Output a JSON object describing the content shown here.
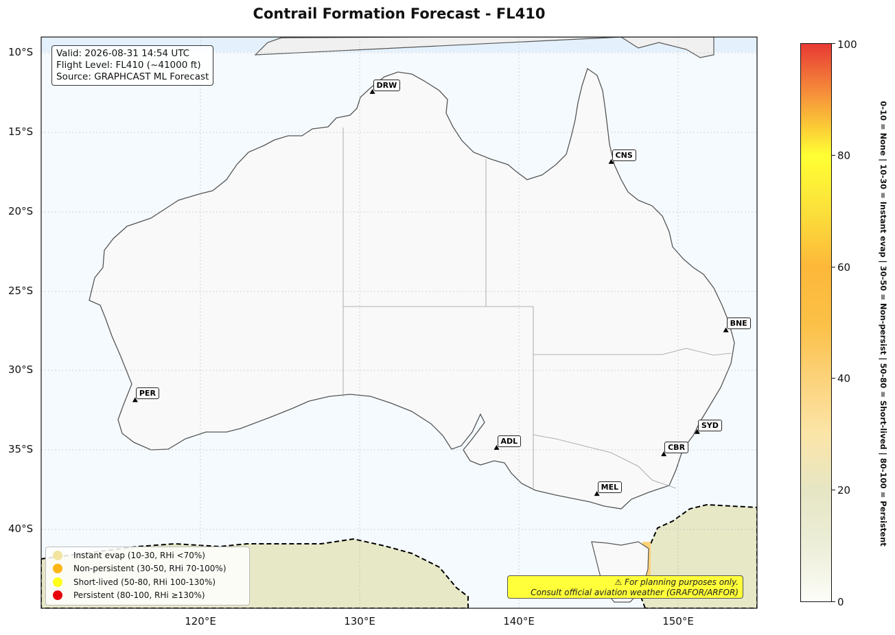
{
  "title": "Contrail Formation Forecast - FL410",
  "info": {
    "valid": "Valid: 2026-08-31 14:54 UTC",
    "flight_level": "Flight Level: FL410 (~41000 ft)",
    "source": "Source: GRAPHCAST ML Forecast"
  },
  "axes": {
    "lat_ticks": [
      "10°S",
      "15°S",
      "20°S",
      "25°S",
      "30°S",
      "35°S",
      "40°S"
    ],
    "lon_ticks": [
      "120°E",
      "130°E",
      "140°E",
      "150°E"
    ]
  },
  "cities": [
    {
      "code": "DRW",
      "lon": 130.8,
      "lat": -12.5
    },
    {
      "code": "CNS",
      "lon": 145.8,
      "lat": -16.9
    },
    {
      "code": "BNE",
      "lon": 153.0,
      "lat": -27.5
    },
    {
      "code": "PER",
      "lon": 115.9,
      "lat": -31.9
    },
    {
      "code": "SYD",
      "lon": 151.2,
      "lat": -33.9
    },
    {
      "code": "ADL",
      "lon": 138.6,
      "lat": -34.9
    },
    {
      "code": "CBR",
      "lon": 149.1,
      "lat": -35.3
    },
    {
      "code": "MEL",
      "lon": 144.9,
      "lat": -37.8
    }
  ],
  "legend": [
    {
      "label": "Instant evap (10-30, RHi <70%)",
      "color": "#f1e4a0"
    },
    {
      "label": "Non-persistent (30-50, RHi 70-100%)",
      "color": "#fdb515"
    },
    {
      "label": "Short-lived (50-80, RHi 100-130%)",
      "color": "#ffff1a"
    },
    {
      "label": "Persistent (80-100, RHi ≥130%)",
      "color": "#e8000b"
    }
  ],
  "warning": {
    "line1": "⚠ For planning purposes only.",
    "line2": "Consult official aviation weather (GRAFOR/ARFOR)"
  },
  "colorbar": {
    "ticks": [
      "0",
      "20",
      "40",
      "60",
      "80",
      "100"
    ],
    "label": "0-10 = None  |  10-30 = Instant evap  |  30-50 = Non-persist  |  50-80 = Short-lived  |  80-100 = Persistent"
  }
}
